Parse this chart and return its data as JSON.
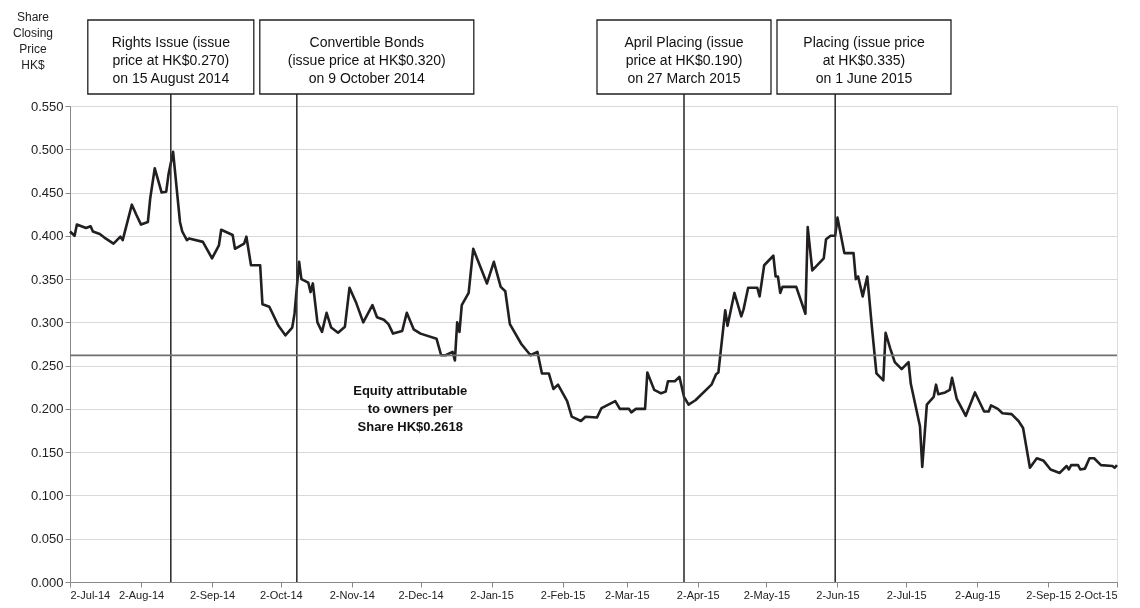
{
  "chart_data": {
    "type": "line",
    "ylabel": "Share\nClosing\nPrice\nHK$",
    "x": [
      "2014-07-02",
      "2014-07-04",
      "2014-07-05",
      "2014-07-09",
      "2014-07-11",
      "2014-07-12",
      "2014-07-15",
      "2014-07-17",
      "2014-07-21",
      "2014-07-24",
      "2014-07-25",
      "2014-07-29",
      "2014-07-31",
      "2014-08-02",
      "2014-08-05",
      "2014-08-06",
      "2014-08-08",
      "2014-08-11",
      "2014-08-13",
      "2014-08-14",
      "2014-08-16",
      "2014-08-19",
      "2014-08-20",
      "2014-08-22",
      "2014-08-23",
      "2014-08-29",
      "2014-09-02",
      "2014-09-05",
      "2014-09-06",
      "2014-09-11",
      "2014-09-12",
      "2014-09-16",
      "2014-09-17",
      "2014-09-19",
      "2014-09-23",
      "2014-09-24",
      "2014-09-27",
      "2014-10-01",
      "2014-10-04",
      "2014-10-07",
      "2014-10-08",
      "2014-10-10",
      "2014-10-11",
      "2014-10-14",
      "2014-10-15",
      "2014-10-16",
      "2014-10-18",
      "2014-10-20",
      "2014-10-22",
      "2014-10-24",
      "2014-10-27",
      "2014-10-30",
      "2014-11-01",
      "2014-11-04",
      "2014-11-07",
      "2014-11-11",
      "2014-11-13",
      "2014-11-16",
      "2014-11-18",
      "2014-11-20",
      "2014-11-24",
      "2014-11-26",
      "2014-11-29",
      "2014-12-02",
      "2014-12-09",
      "2014-12-11",
      "2014-12-13",
      "2014-12-16",
      "2014-12-17",
      "2014-12-18",
      "2014-12-19",
      "2014-12-20",
      "2014-12-23",
      "2014-12-25",
      "2014-12-31",
      "2015-01-03",
      "2015-01-06",
      "2015-01-08",
      "2015-01-10",
      "2015-01-15",
      "2015-01-19",
      "2015-01-22",
      "2015-01-24",
      "2015-01-27",
      "2015-01-29",
      "2015-01-31",
      "2015-02-04",
      "2015-02-06",
      "2015-02-10",
      "2015-02-12",
      "2015-02-17",
      "2015-02-19",
      "2015-02-25",
      "2015-02-27",
      "2015-03-03",
      "2015-03-04",
      "2015-03-06",
      "2015-03-10",
      "2015-03-11",
      "2015-03-14",
      "2015-03-17",
      "2015-03-19",
      "2015-03-20",
      "2015-03-23",
      "2015-03-25",
      "2015-03-27",
      "2015-03-29",
      "2015-04-01",
      "2015-04-08",
      "2015-04-10",
      "2015-04-11",
      "2015-04-14",
      "2015-04-15",
      "2015-04-18",
      "2015-04-21",
      "2015-04-22",
      "2015-04-24",
      "2015-04-28",
      "2015-04-29",
      "2015-05-01",
      "2015-05-05",
      "2015-05-06",
      "2015-05-07",
      "2015-05-08",
      "2015-05-09",
      "2015-05-15",
      "2015-05-19",
      "2015-05-20",
      "2015-05-22",
      "2015-05-27",
      "2015-05-28",
      "2015-05-30",
      "2015-06-01",
      "2015-06-02",
      "2015-06-05",
      "2015-06-09",
      "2015-06-10",
      "2015-06-11",
      "2015-06-13",
      "2015-06-15",
      "2015-06-17",
      "2015-06-19",
      "2015-06-22",
      "2015-06-23",
      "2015-06-25",
      "2015-06-27",
      "2015-06-30",
      "2015-07-03",
      "2015-07-04",
      "2015-07-08",
      "2015-07-09",
      "2015-07-11",
      "2015-07-14",
      "2015-07-15",
      "2015-07-16",
      "2015-07-19",
      "2015-07-21",
      "2015-07-22",
      "2015-07-24",
      "2015-07-28",
      "2015-08-01",
      "2015-08-05",
      "2015-08-07",
      "2015-08-08",
      "2015-08-11",
      "2015-08-13",
      "2015-08-17",
      "2015-08-20",
      "2015-08-22",
      "2015-08-25",
      "2015-08-28",
      "2015-08-31",
      "2015-09-03",
      "2015-09-07",
      "2015-09-10",
      "2015-09-11",
      "2015-09-12",
      "2015-09-15",
      "2015-09-16",
      "2015-09-18",
      "2015-09-20",
      "2015-09-22",
      "2015-09-25",
      "2015-09-30",
      "2015-10-01",
      "2015-10-02"
    ],
    "series": [
      {
        "color": "#231f20",
        "values": [
          0.405,
          0.4,
          0.413,
          0.409,
          0.411,
          0.405,
          0.402,
          0.398,
          0.391,
          0.399,
          0.395,
          0.436,
          0.424,
          0.413,
          0.416,
          0.443,
          0.478,
          0.45,
          0.451,
          0.471,
          0.497,
          0.416,
          0.405,
          0.395,
          0.397,
          0.393,
          0.374,
          0.389,
          0.407,
          0.401,
          0.385,
          0.391,
          0.399,
          0.366,
          0.366,
          0.321,
          0.318,
          0.296,
          0.285,
          0.294,
          0.31,
          0.37,
          0.35,
          0.346,
          0.335,
          0.345,
          0.3,
          0.289,
          0.311,
          0.294,
          0.288,
          0.295,
          0.34,
          0.322,
          0.3,
          0.32,
          0.306,
          0.303,
          0.298,
          0.287,
          0.29,
          0.311,
          0.292,
          0.287,
          0.281,
          0.262,
          0.262,
          0.266,
          0.256,
          0.3,
          0.289,
          0.32,
          0.334,
          0.385,
          0.345,
          0.37,
          0.341,
          0.336,
          0.298,
          0.275,
          0.262,
          0.266,
          0.241,
          0.241,
          0.223,
          0.228,
          0.209,
          0.191,
          0.186,
          0.191,
          0.19,
          0.201,
          0.209,
          0.2,
          0.2,
          0.196,
          0.2,
          0.2,
          0.242,
          0.222,
          0.218,
          0.22,
          0.232,
          0.232,
          0.237,
          0.214,
          0.205,
          0.21,
          0.228,
          0.24,
          0.242,
          0.314,
          0.296,
          0.334,
          0.307,
          0.315,
          0.34,
          0.34,
          0.33,
          0.366,
          0.377,
          0.353,
          0.353,
          0.334,
          0.341,
          0.341,
          0.31,
          0.41,
          0.36,
          0.374,
          0.396,
          0.4,
          0.4,
          0.421,
          0.38,
          0.38,
          0.35,
          0.353,
          0.33,
          0.353,
          0.295,
          0.241,
          0.233,
          0.288,
          0.27,
          0.254,
          0.246,
          0.254,
          0.229,
          0.18,
          0.133,
          0.205,
          0.214,
          0.228,
          0.217,
          0.219,
          0.222,
          0.236,
          0.212,
          0.192,
          0.219,
          0.197,
          0.197,
          0.204,
          0.2,
          0.195,
          0.194,
          0.186,
          0.178,
          0.132,
          0.143,
          0.14,
          0.13,
          0.126,
          0.134,
          0.13,
          0.135,
          0.135,
          0.13,
          0.131,
          0.143,
          0.143,
          0.135,
          0.134,
          0.132,
          0.135
        ]
      }
    ],
    "xlim": [
      "2014-07-02",
      "2015-10-02"
    ],
    "xticks": [
      {
        "value": "2014-07-02",
        "label": "2-Jul-14"
      },
      {
        "value": "2014-08-02",
        "label": "2-Aug-14"
      },
      {
        "value": "2014-09-02",
        "label": "2-Sep-14"
      },
      {
        "value": "2014-10-02",
        "label": "2-Oct-14"
      },
      {
        "value": "2014-11-02",
        "label": "2-Nov-14"
      },
      {
        "value": "2014-12-02",
        "label": "2-Dec-14"
      },
      {
        "value": "2015-01-02",
        "label": "2-Jan-15"
      },
      {
        "value": "2015-02-02",
        "label": "2-Feb-15"
      },
      {
        "value": "2015-03-02",
        "label": "2-Mar-15"
      },
      {
        "value": "2015-04-02",
        "label": "2-Apr-15"
      },
      {
        "value": "2015-05-02",
        "label": "2-May-15"
      },
      {
        "value": "2015-06-02",
        "label": "2-Jun-15"
      },
      {
        "value": "2015-07-02",
        "label": "2-Jul-15"
      },
      {
        "value": "2015-08-02",
        "label": "2-Aug-15"
      },
      {
        "value": "2015-09-02",
        "label": "2-Sep-15"
      },
      {
        "value": "2015-10-02",
        "label": "2-Oct-15"
      }
    ],
    "ylim": [
      0,
      0.55
    ],
    "yticks": [
      {
        "value": 0,
        "label": "0.000"
      },
      {
        "value": 0.05,
        "label": "0.050"
      },
      {
        "value": 0.1,
        "label": "0.100"
      },
      {
        "value": 0.15,
        "label": "0.150"
      },
      {
        "value": 0.2,
        "label": "0.200"
      },
      {
        "value": 0.25,
        "label": "0.250"
      },
      {
        "value": 0.3,
        "label": "0.300"
      },
      {
        "value": 0.35,
        "label": "0.350"
      },
      {
        "value": 0.4,
        "label": "0.400"
      },
      {
        "value": 0.45,
        "label": "0.450"
      },
      {
        "value": 0.5,
        "label": "0.500"
      },
      {
        "value": 0.55,
        "label": "0.550"
      }
    ],
    "grid": "y",
    "ref_lines": [
      {
        "axis": "x",
        "value": "2014-08-15",
        "label": "Rights Issue (issue\nprice at HK$0.270)\non 15 August 2014",
        "color": "#333333"
      },
      {
        "axis": "x",
        "value": "2014-10-09",
        "label": "Convertible Bonds\n(issue price at HK$0.320)\non 9 October 2014",
        "color": "#333333"
      },
      {
        "axis": "x",
        "value": "2015-03-27",
        "label": "April Placing (issue\nprice at HK$0.190)\non 27 March 2015",
        "color": "#333333"
      },
      {
        "axis": "x",
        "value": "2015-06-01",
        "label": "Placing (issue price\nat HK$0.335)\non 1 June 2015",
        "color": "#333333"
      },
      {
        "axis": "y",
        "value": 0.2618,
        "label": "Equity attributable\nto owners per\nShare HK$0.2618",
        "color": "#707070"
      }
    ]
  }
}
